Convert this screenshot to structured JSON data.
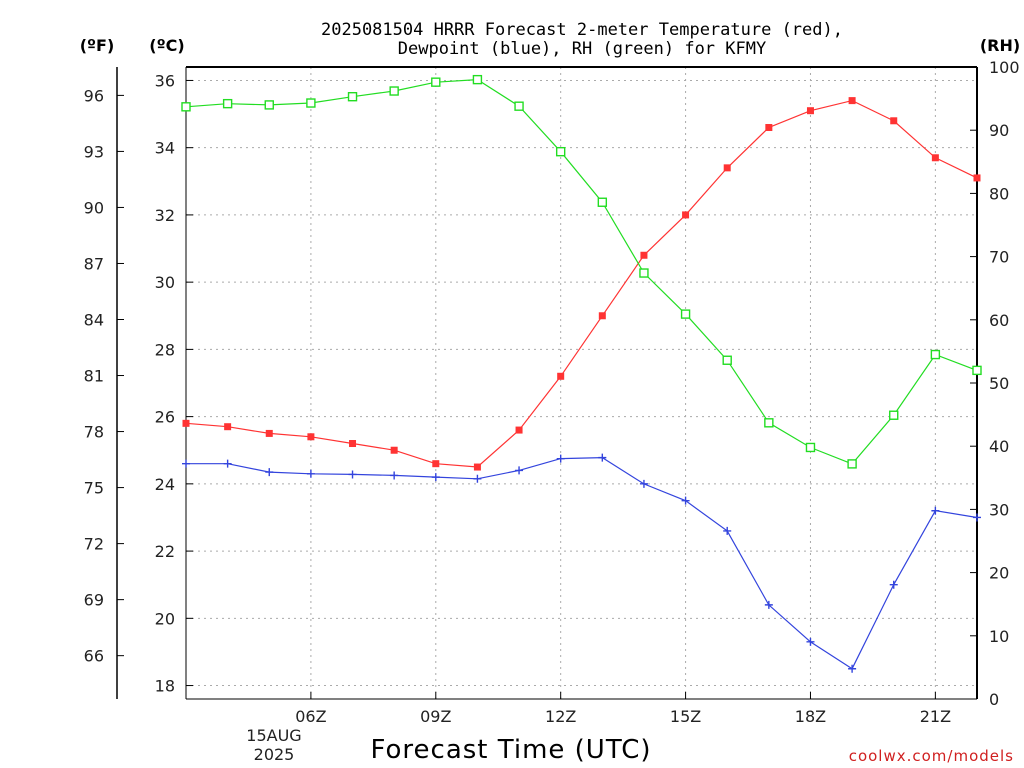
{
  "chart_data": {
    "type": "line",
    "title_line1": "2025081504 HRRR Forecast 2-meter Temperature (red),",
    "title_line2": "Dewpoint (blue), RH (green) for KFMY",
    "units": {
      "fahrenheit": "(ºF)",
      "celsius": "(ºC)",
      "rh": "(RH)"
    },
    "xlabel": "Forecast Time (UTC)",
    "date_label_line1": "15AUG",
    "date_label_line2": "2025",
    "credit": "coolwx.com/models",
    "x_hours": [
      3,
      4,
      5,
      6,
      7,
      8,
      9,
      10,
      11,
      12,
      13,
      14,
      15,
      16,
      17,
      18,
      19,
      20,
      21,
      22
    ],
    "x_range": [
      3,
      22
    ],
    "x_ticks": [
      {
        "hour": 6,
        "label": "06Z"
      },
      {
        "hour": 9,
        "label": "09Z"
      },
      {
        "hour": 12,
        "label": "12Z"
      },
      {
        "hour": 15,
        "label": "15Z"
      },
      {
        "hour": 18,
        "label": "18Z"
      },
      {
        "hour": 21,
        "label": "21Z"
      }
    ],
    "celsius_range": [
      17.6,
      36.4
    ],
    "celsius_ticks": [
      18,
      20,
      22,
      24,
      26,
      28,
      30,
      32,
      34,
      36
    ],
    "fahrenheit_ticks": [
      66,
      69,
      72,
      75,
      78,
      81,
      84,
      87,
      90,
      93,
      96
    ],
    "rh_range": [
      0,
      100
    ],
    "rh_ticks": [
      0,
      10,
      20,
      30,
      40,
      50,
      60,
      70,
      80,
      90,
      100
    ],
    "series": [
      {
        "name": "Temperature",
        "axis": "celsius",
        "color": "#ff3333",
        "marker": "filled-square",
        "values": [
          25.8,
          25.7,
          25.5,
          25.4,
          25.2,
          25.0,
          24.6,
          24.5,
          25.6,
          27.2,
          29.0,
          30.8,
          32.0,
          33.4,
          34.6,
          35.1,
          35.4,
          34.8,
          33.7,
          33.1
        ]
      },
      {
        "name": "Dewpoint",
        "axis": "celsius",
        "color": "#3344dd",
        "marker": "plus",
        "values": [
          24.6,
          24.6,
          24.35,
          24.3,
          24.28,
          24.25,
          24.2,
          24.15,
          24.4,
          24.75,
          24.78,
          24.0,
          23.5,
          22.6,
          20.4,
          19.3,
          18.5,
          21.0,
          23.2,
          23.0
        ]
      },
      {
        "name": "RH",
        "axis": "rh",
        "color": "#22dd22",
        "marker": "open-square",
        "values": [
          93.7,
          94.2,
          94.0,
          94.3,
          95.3,
          96.2,
          97.6,
          98.0,
          93.8,
          86.6,
          78.6,
          67.4,
          60.9,
          53.6,
          43.7,
          39.8,
          37.2,
          44.9,
          54.5,
          52.0
        ]
      }
    ]
  }
}
